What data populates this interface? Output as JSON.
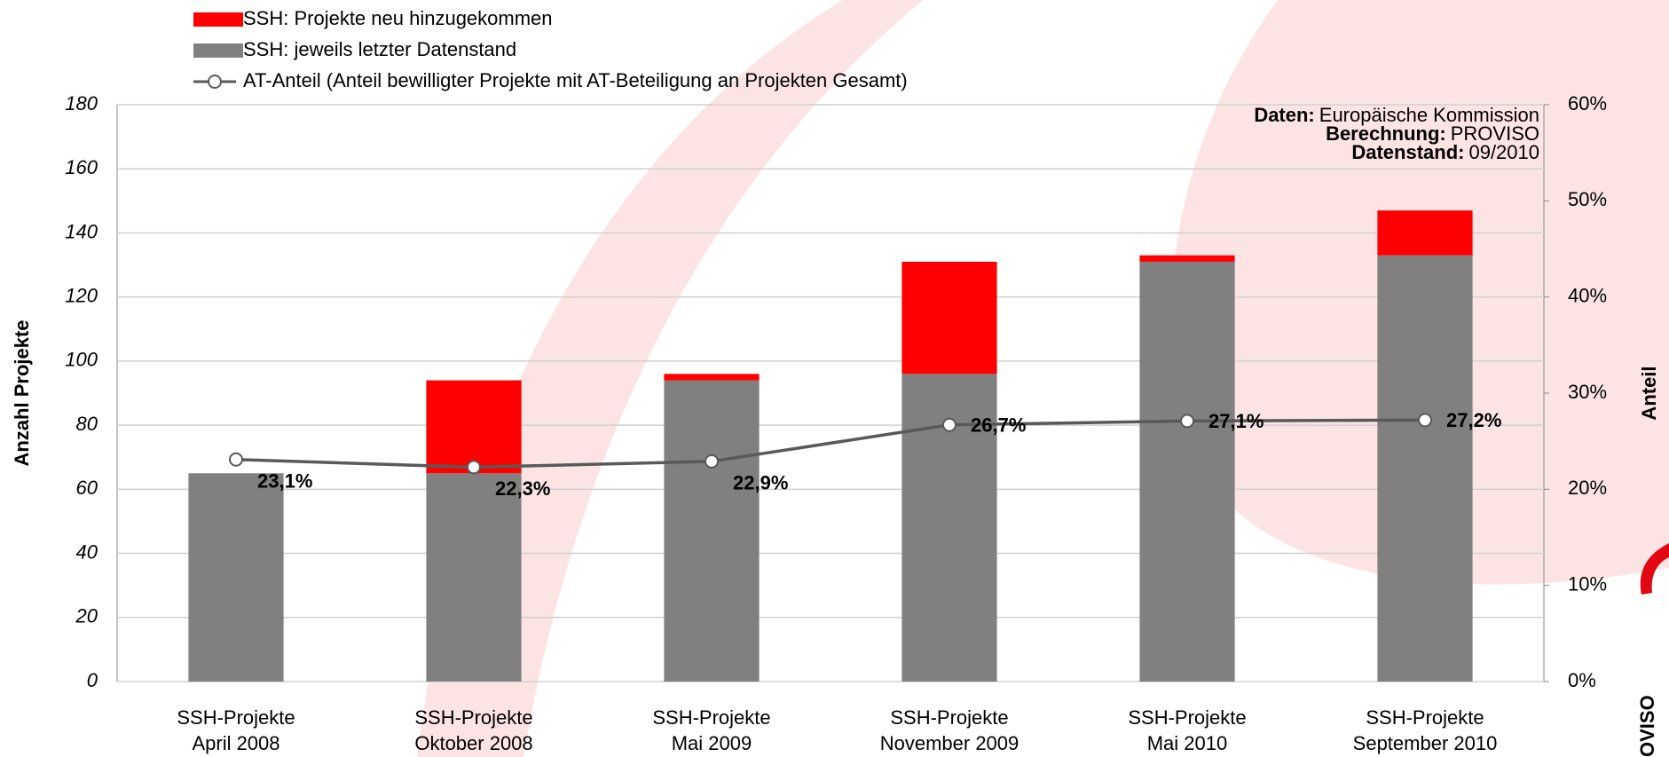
{
  "chart_data": {
    "type": "bar",
    "stacked": true,
    "categories": [
      "SSH-Projekte\nApril 2008",
      "SSH-Projekte\nOktober 2008",
      "SSH-Projekte\nMai 2009",
      "SSH-Projekte\nNovember 2009",
      "SSH-Projekte\nMai 2010",
      "SSH-Projekte\nSeptember 2010"
    ],
    "series": [
      {
        "name": "SSH: Projekte neu hinzugekommen",
        "color": "#ff0000",
        "values": [
          0,
          29,
          2,
          35,
          2,
          14
        ]
      },
      {
        "name": "SSH: jeweils letzter Datenstand",
        "color": "#808080",
        "values": [
          65,
          65,
          94,
          96,
          131,
          133
        ]
      },
      {
        "name": "AT-Anteil (Anteil bewilligter Projekte mit AT-Beteiligung an Projekten Gesamt)",
        "color": "#595959",
        "type": "line",
        "axis": "y2",
        "values": [
          23.1,
          22.3,
          22.9,
          26.7,
          27.1,
          27.2
        ],
        "value_labels": [
          "23,1%",
          "22,3%",
          "22,9%",
          "26,7%",
          "27,1%",
          "27,2%"
        ]
      }
    ],
    "ylabel": "Anzahl Projekte",
    "y2label": "Anteil",
    "ylim": [
      0,
      180
    ],
    "yticks": [
      0,
      20,
      40,
      60,
      80,
      100,
      120,
      140,
      160,
      180
    ],
    "y2lim": [
      0,
      60
    ],
    "y2ticks": [
      {
        "value": 0,
        "label": "0%"
      },
      {
        "value": 10,
        "label": "10%"
      },
      {
        "value": 20,
        "label": "20%"
      },
      {
        "value": 30,
        "label": "30%"
      },
      {
        "value": 40,
        "label": "40%"
      },
      {
        "value": 50,
        "label": "50%"
      },
      {
        "value": 60,
        "label": "60%"
      }
    ],
    "grid": true,
    "legend": "top-left",
    "annotations": [
      {
        "label": "Daten:",
        "text": "Europäische Kommission"
      },
      {
        "label": "Berechnung:",
        "text": "PROVISO"
      },
      {
        "label": "Datenstand:",
        "text": "09/2010"
      }
    ],
    "logo": "OVISO"
  }
}
